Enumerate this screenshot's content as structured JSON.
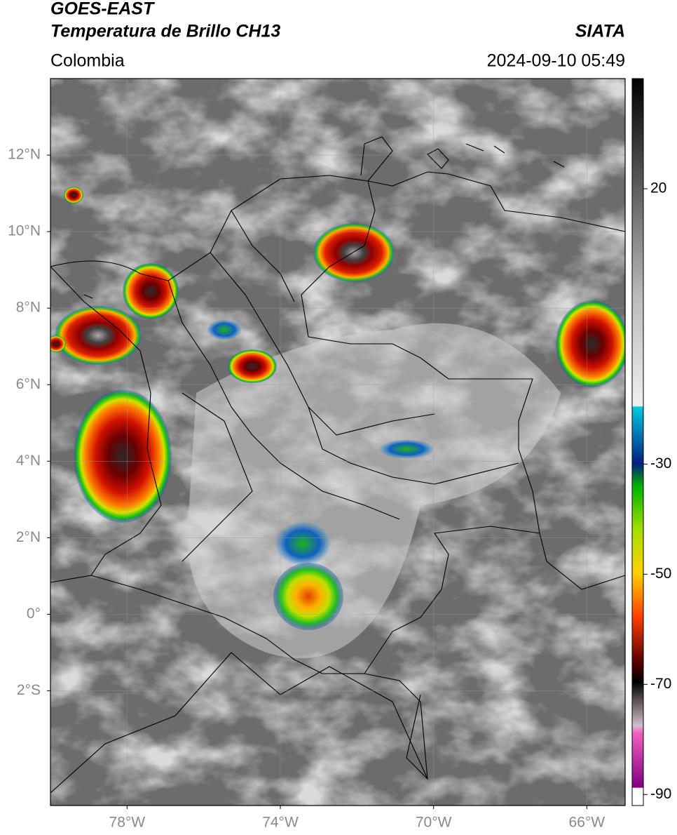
{
  "header": {
    "title": "GOES-EAST",
    "subtitle": "Temperatura de Brillo CH13",
    "region": "Colombia",
    "source": "SIATA",
    "datetime": "2024-09-10 05:49"
  },
  "map": {
    "lonlim": [
      -80,
      -65
    ],
    "latlim": [
      -5,
      14
    ],
    "lonticks": [
      {
        "value": -78,
        "label": "78°W"
      },
      {
        "value": -74,
        "label": "74°W"
      },
      {
        "value": -70,
        "label": "70°W"
      },
      {
        "value": -66,
        "label": "66°W"
      }
    ],
    "latticks": [
      {
        "value": 12,
        "label": "12°N"
      },
      {
        "value": 10,
        "label": "10°N"
      },
      {
        "value": 8,
        "label": "8°N"
      },
      {
        "value": 6,
        "label": "6°N"
      },
      {
        "value": 4,
        "label": "4°N"
      },
      {
        "value": 2,
        "label": "2°N"
      },
      {
        "value": 0,
        "label": "0°"
      },
      {
        "value": -2,
        "label": "2°S"
      }
    ]
  },
  "colorbar": {
    "lim": [
      -92,
      40
    ],
    "ticks": [
      20,
      -30,
      -50,
      -70,
      -90
    ]
  }
}
